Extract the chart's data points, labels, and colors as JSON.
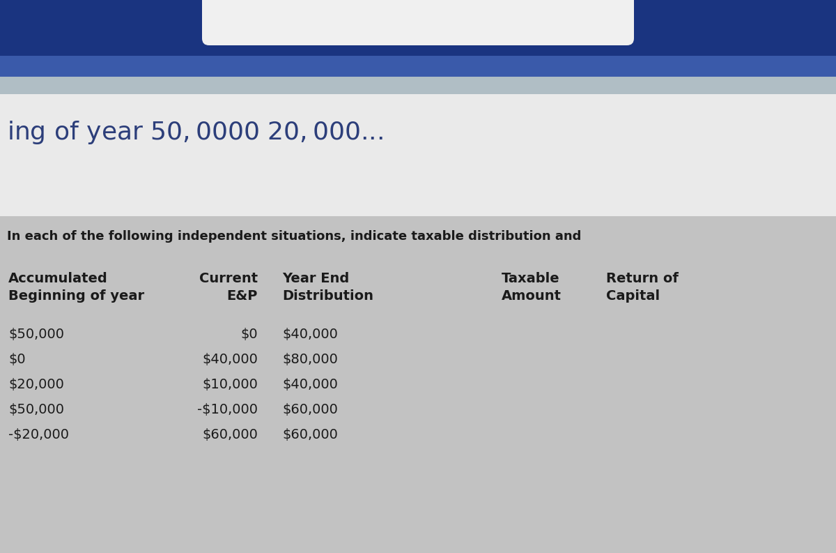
{
  "title_bar_text": "ing of year $50,000 $0 $20,000 $...",
  "top_banner_color": "#1e3799",
  "top_banner_gradient_end": "#4a69bd",
  "white_bg_color": "#e8eaf0",
  "subtitle_text": "In each of the following independent situations, indicate taxable distribution and",
  "table_bg_color": "#c0c0c0",
  "header_row1": [
    "Accumulated",
    "Current",
    "Year End",
    "Taxable",
    "Return of"
  ],
  "header_row2": [
    "Beginning of year",
    "E&P",
    "Distribution",
    "Amount",
    "Capital"
  ],
  "data_col0": [
    "$50,000",
    "$0",
    "$20,000",
    "$50,000",
    "-$20,000"
  ],
  "data_col1": [
    "$0",
    "$40,000",
    "$10,000",
    "-$10,000",
    "$60,000"
  ],
  "data_col2": [
    "$40,000",
    "$80,000",
    "$40,000",
    "$60,000",
    "$60,000"
  ],
  "font_color": "#1a1a1a",
  "title_font_color": "#2c3e7a",
  "header_font_size": 14,
  "data_font_size": 14,
  "title_font_size": 26,
  "subtitle_font_size": 13
}
